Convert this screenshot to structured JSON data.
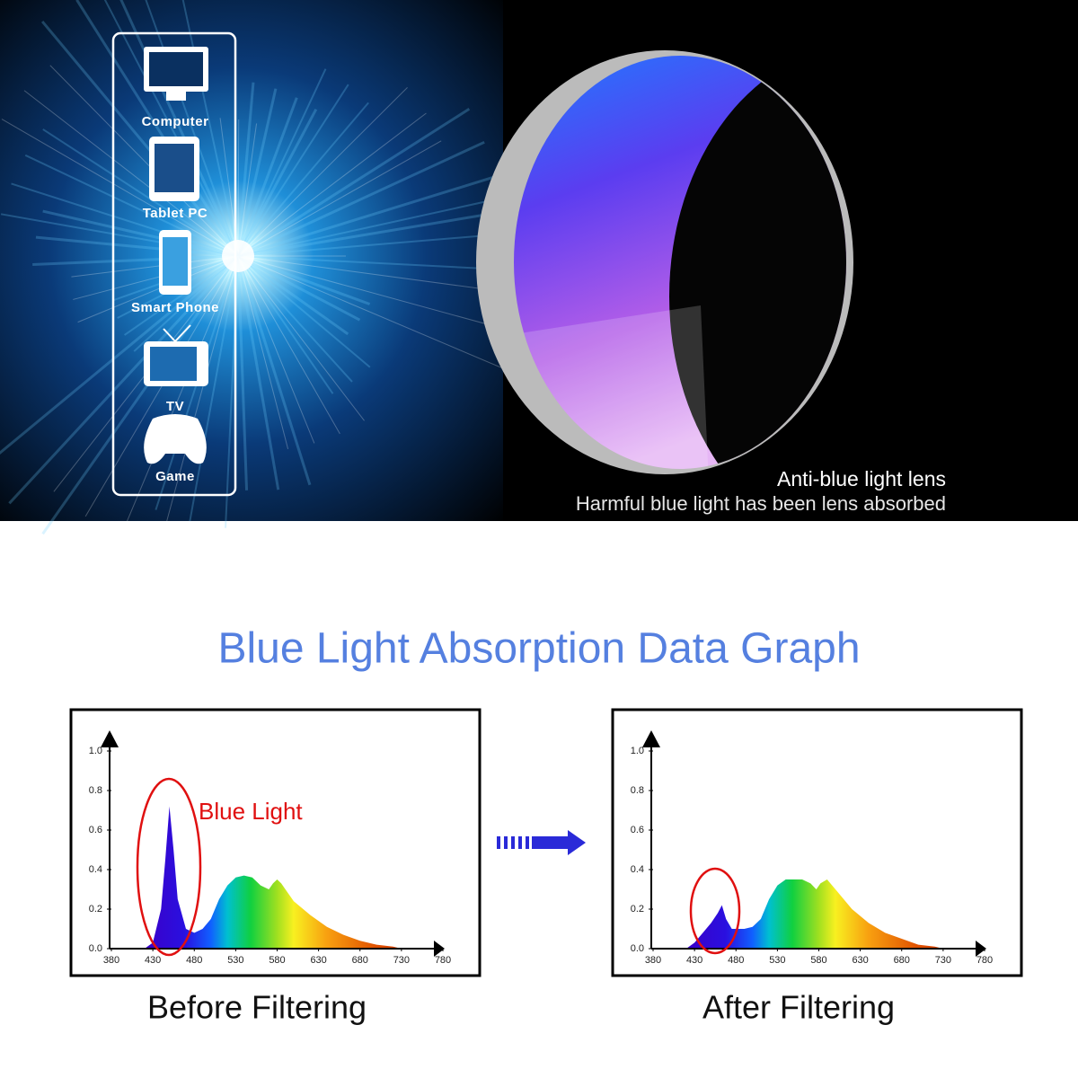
{
  "banner": {
    "devices": [
      "Computer",
      "Tablet PC",
      "Smart Phone",
      "TV",
      "Game"
    ],
    "lens_title": "Anti-blue light lens",
    "lens_subtitle": "Harmful blue light has been lens absorbed"
  },
  "heading": "Blue Light Absorption Data Graph",
  "chart_data": [
    {
      "type": "area",
      "title": "Before Filtering",
      "annotation": "Blue Light",
      "x": [
        420,
        430,
        440,
        445,
        450,
        455,
        460,
        470,
        480,
        490,
        500,
        510,
        520,
        530,
        540,
        550,
        560,
        570,
        575,
        580,
        585,
        590,
        600,
        620,
        640,
        660,
        680,
        700,
        720,
        730
      ],
      "values": [
        0,
        0.03,
        0.2,
        0.45,
        0.72,
        0.5,
        0.25,
        0.1,
        0.08,
        0.1,
        0.15,
        0.25,
        0.32,
        0.36,
        0.37,
        0.36,
        0.32,
        0.3,
        0.33,
        0.35,
        0.33,
        0.3,
        0.24,
        0.17,
        0.11,
        0.07,
        0.04,
        0.02,
        0.01,
        0
      ],
      "xlim": [
        380,
        780
      ],
      "xticks": [
        380,
        430,
        480,
        530,
        580,
        630,
        680,
        730,
        780
      ],
      "ylim": [
        0,
        1
      ],
      "yticks": [
        {
          "value": 0,
          "label": "0.0"
        },
        0.2,
        0.4,
        0.6,
        0.8,
        {
          "value": 1,
          "label": "1.0"
        }
      ]
    },
    {
      "type": "area",
      "title": "After Filtering",
      "x": [
        420,
        430,
        440,
        450,
        458,
        463,
        468,
        475,
        480,
        490,
        500,
        510,
        520,
        530,
        540,
        550,
        560,
        570,
        577,
        582,
        590,
        600,
        620,
        640,
        660,
        680,
        700,
        720,
        730
      ],
      "values": [
        0,
        0.03,
        0.08,
        0.13,
        0.18,
        0.22,
        0.15,
        0.1,
        0.1,
        0.1,
        0.11,
        0.15,
        0.25,
        0.32,
        0.35,
        0.35,
        0.35,
        0.33,
        0.3,
        0.33,
        0.35,
        0.3,
        0.2,
        0.13,
        0.08,
        0.05,
        0.02,
        0.01,
        0
      ],
      "xlim": [
        380,
        780
      ],
      "xticks": [
        380,
        430,
        480,
        530,
        580,
        630,
        680,
        730,
        780
      ],
      "ylim": [
        0,
        1
      ],
      "yticks": [
        {
          "value": 0,
          "label": "0.0"
        },
        0.2,
        0.4,
        0.6,
        0.8,
        {
          "value": 1,
          "label": "1.0"
        }
      ]
    }
  ]
}
